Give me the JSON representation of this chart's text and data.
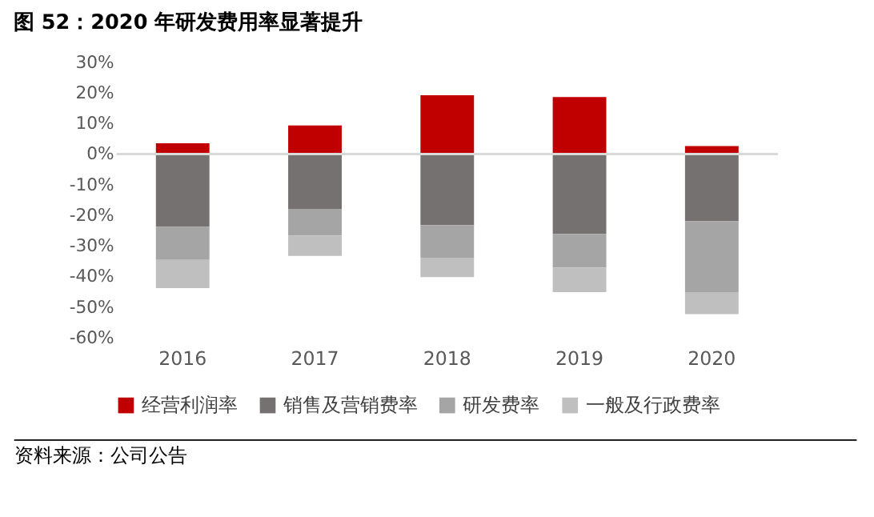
{
  "chart_data": {
    "type": "bar",
    "title": "图 52：2020 年研发费用率显著提升",
    "stacked": true,
    "categories": [
      "2016",
      "2017",
      "2018",
      "2019",
      "2020"
    ],
    "series": [
      {
        "name": "经营利润率",
        "color": "#c00000",
        "values": [
          3.5,
          9.3,
          19.2,
          18.6,
          2.6
        ]
      },
      {
        "name": "销售及营销费率",
        "color": "#767171",
        "values": [
          -23.8,
          -17.9,
          -23.3,
          -26.1,
          -22.0
        ]
      },
      {
        "name": "研发费率",
        "color": "#a5a5a5",
        "values": [
          -10.8,
          -8.7,
          -10.6,
          -11.0,
          -23.1
        ]
      },
      {
        "name": "一般及行政费率",
        "color": "#bfbfbf",
        "values": [
          -9.2,
          -6.7,
          -6.3,
          -8.0,
          -7.2
        ]
      }
    ],
    "ylim": [
      -60,
      30
    ],
    "yticks": [
      {
        "value": 30,
        "label": "30%"
      },
      {
        "value": 20,
        "label": "20%"
      },
      {
        "value": 10,
        "label": "10%"
      },
      {
        "value": 0,
        "label": "0%"
      },
      {
        "value": -10,
        "label": "-10%"
      },
      {
        "value": -20,
        "label": "-20%"
      },
      {
        "value": -30,
        "label": "-30%"
      },
      {
        "value": -40,
        "label": "-40%"
      },
      {
        "value": -50,
        "label": "-50%"
      },
      {
        "value": -60,
        "label": "-60%"
      }
    ],
    "ref_lines": [
      {
        "axis": "y",
        "value": 0,
        "color": "#d9d9d9"
      }
    ],
    "grid": false,
    "legend": "bottom",
    "annotations": [
      "资料来源：公司公告"
    ]
  }
}
